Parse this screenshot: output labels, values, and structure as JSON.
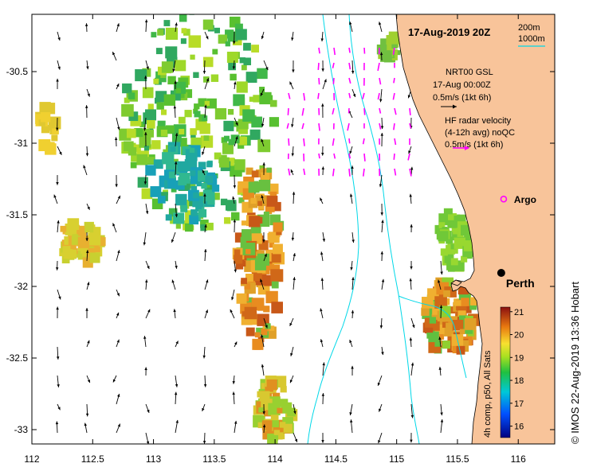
{
  "map": {
    "title": "17-Aug-2019 20Z",
    "credit": "© IMOS 22-Aug-2019 13:36 Hobart",
    "colors": {
      "land": "#f8c49a",
      "ocean": "#ffffff",
      "isobath": "#00d8e8",
      "radar_arrow": "#ff00ff",
      "model_arrow": "#000000"
    },
    "extent": {
      "lon": [
        112,
        116.3
      ],
      "lat": [
        -33.1,
        -30.1
      ]
    },
    "x_ticks": [
      "112",
      "112.5",
      "113",
      "113.5",
      "114",
      "114.5",
      "115",
      "115.5",
      "116"
    ],
    "y_ticks": [
      "-30.5",
      "-31",
      "-31.5",
      "-32",
      "-32.5",
      "-33"
    ]
  },
  "isobath_legend": {
    "line1": "200m",
    "line2": "1000m"
  },
  "model_legend": {
    "name": "NRT00 GSL",
    "time": "17-Aug 00:00Z",
    "scale": "0.5m/s (1kt 6h)"
  },
  "radar_legend": {
    "line1": "HF radar velocity",
    "line2": "(4-12h avg) noQC",
    "scale": "0.5m/s (1kt 6h)"
  },
  "places": [
    {
      "name": "Argo",
      "lon": 115.88,
      "lat": -31.39,
      "marker": "argo-float-icon"
    },
    {
      "name": "Perth",
      "lon": 115.86,
      "lat": -31.95,
      "marker": "city-dot-icon"
    }
  ],
  "colorbar": {
    "label": "4h comp, p50, All Sats",
    "min": 15.5,
    "max": 21.2,
    "ticks": [
      "21",
      "20",
      "19",
      "18",
      "17",
      "16"
    ],
    "tick_values": [
      21,
      20,
      19,
      18,
      17,
      16
    ]
  }
}
